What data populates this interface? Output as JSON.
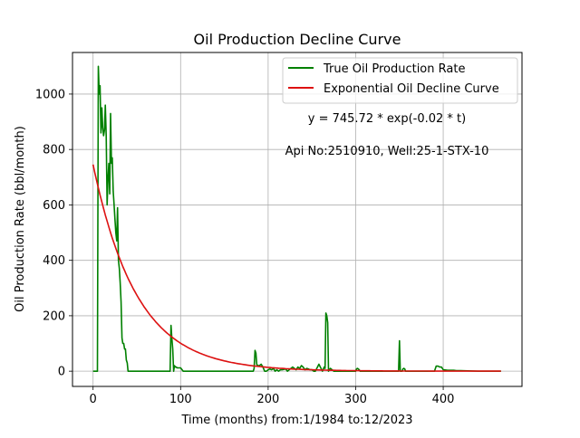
{
  "chart_data": {
    "type": "line",
    "title": "Oil Production Decline Curve",
    "xlabel": "Time (months) from:1/1984 to:12/2023",
    "ylabel": "Oil Production Rate (bbl/month)",
    "xlim": [
      -23.5,
      490
    ],
    "ylim": [
      -55,
      1150
    ],
    "x_ticks": [
      0,
      100,
      200,
      300,
      400
    ],
    "y_ticks": [
      0,
      200,
      400,
      600,
      800,
      1000
    ],
    "grid": true,
    "legend_position": "top-right",
    "annotations": [
      {
        "id": "equation",
        "text": "y = 745.72 * exp(-0.02 * t)",
        "x": 335,
        "y": 900
      },
      {
        "id": "well-info",
        "text": "Api No:2510910, Well:25-1-STX-10",
        "x": 335,
        "y": 782
      }
    ],
    "series": [
      {
        "name": "True Oil Production Rate",
        "color": "#008000",
        "x": [
          0,
          5,
          6,
          7,
          8,
          9,
          10,
          11,
          12,
          13,
          14,
          15,
          16,
          17,
          18,
          19,
          20,
          21,
          22,
          23,
          24,
          25,
          26,
          27,
          28,
          29,
          30,
          31,
          32,
          33,
          34,
          35,
          36,
          37,
          38,
          39,
          40,
          41,
          42,
          43,
          44,
          45,
          46,
          47,
          48,
          50,
          88,
          89,
          90,
          91,
          92,
          93,
          94,
          95,
          96,
          98,
          100,
          103,
          104,
          106,
          108,
          110,
          112,
          183,
          184,
          185,
          186,
          187,
          188,
          190,
          192,
          194,
          196,
          197,
          198,
          200,
          202,
          204,
          206,
          208,
          210,
          212,
          214,
          216,
          220,
          222,
          224,
          226,
          228,
          230,
          232,
          234,
          236,
          238,
          240,
          242,
          244,
          246,
          248,
          250,
          252,
          254,
          258,
          262,
          264,
          265,
          266,
          267,
          268,
          269,
          270,
          271,
          272,
          273,
          274,
          275,
          280,
          300,
          301,
          302,
          303,
          304,
          305,
          349,
          350,
          351,
          352,
          353,
          354,
          355,
          356,
          357,
          358,
          359,
          360,
          390,
          392,
          394,
          396,
          398,
          400,
          405,
          410,
          412,
          415,
          420,
          440,
          466
        ],
        "y": [
          0,
          0,
          1100,
          1000,
          1030,
          860,
          950,
          880,
          850,
          870,
          960,
          850,
          600,
          690,
          750,
          640,
          930,
          750,
          770,
          650,
          600,
          550,
          500,
          470,
          590,
          400,
          370,
          320,
          250,
          120,
          100,
          100,
          80,
          80,
          40,
          30,
          0,
          0,
          0,
          0,
          0,
          0,
          0,
          0,
          0,
          0,
          0,
          165,
          120,
          80,
          0,
          20,
          15,
          15,
          12,
          12,
          12,
          0,
          0,
          0,
          0,
          0,
          0,
          0,
          10,
          75,
          65,
          25,
          20,
          20,
          25,
          15,
          0,
          0,
          0,
          5,
          8,
          5,
          10,
          0,
          5,
          0,
          5,
          5,
          8,
          0,
          5,
          10,
          15,
          10,
          5,
          15,
          10,
          20,
          15,
          5,
          10,
          8,
          5,
          5,
          0,
          0,
          25,
          0,
          15,
          10,
          210,
          200,
          175,
          0,
          5,
          10,
          8,
          5,
          3,
          0,
          0,
          0,
          8,
          10,
          8,
          5,
          0,
          0,
          110,
          0,
          0,
          0,
          8,
          10,
          8,
          0,
          0,
          0,
          0,
          0,
          18,
          18,
          15,
          15,
          5,
          3,
          3,
          3,
          2,
          2,
          0,
          0
        ]
      },
      {
        "name": "Exponential Oil Decline Curve",
        "color": "#dd1111",
        "model": {
          "a": 745.72,
          "b": -0.02
        },
        "x": [
          0,
          5,
          10,
          15,
          20,
          25,
          30,
          35,
          40,
          45,
          50,
          60,
          70,
          80,
          90,
          100,
          120,
          140,
          160,
          180,
          200,
          230,
          260,
          300,
          350,
          400,
          466
        ],
        "y": [
          745.72,
          674.8,
          610.6,
          552.4,
          499.9,
          452.3,
          409.3,
          370.3,
          335.1,
          303.2,
          274.3,
          224.6,
          183.9,
          150.5,
          123.2,
          100.9,
          67.6,
          45.3,
          30.4,
          20.4,
          13.7,
          7.5,
          4.1,
          1.8,
          0.7,
          0.3,
          0.07
        ]
      }
    ]
  }
}
